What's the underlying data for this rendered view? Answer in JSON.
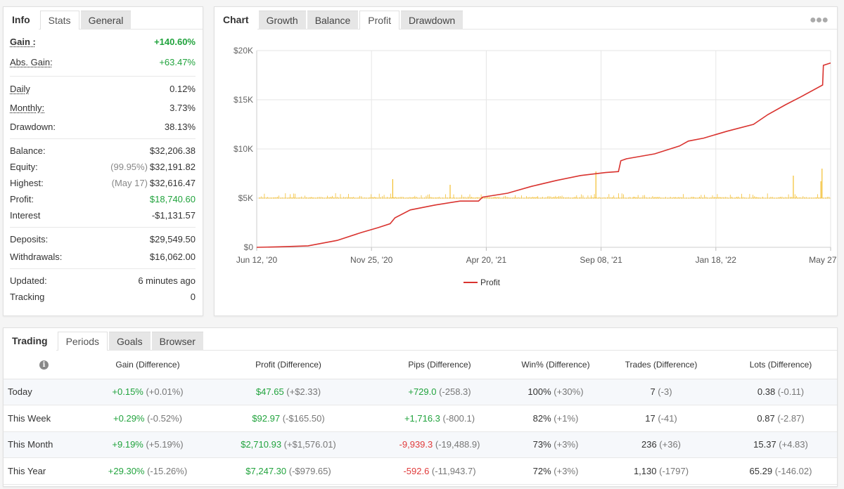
{
  "info_panel": {
    "tabs": [
      {
        "label": "Info",
        "kind": "label"
      },
      {
        "label": "Stats",
        "kind": "active"
      },
      {
        "label": "General",
        "kind": "inactive"
      }
    ],
    "gain": {
      "label": "Gain :",
      "value": "+140.60%"
    },
    "abs_gain": {
      "label": "Abs. Gain:",
      "value": "+63.47%"
    },
    "daily": {
      "label": "Daily",
      "value": "0.12%"
    },
    "monthly": {
      "label": "Monthly:",
      "value": "3.73%"
    },
    "drawdown": {
      "label": "Drawdown:",
      "value": "38.13%"
    },
    "balance": {
      "label": "Balance:",
      "value": "$32,206.38"
    },
    "equity": {
      "label": "Equity:",
      "note": "(99.95%)",
      "value": "$32,191.82"
    },
    "highest": {
      "label": "Highest:",
      "note": "(May 17)",
      "value": "$32,616.47"
    },
    "profit": {
      "label": "Profit:",
      "value": "$18,740.60"
    },
    "interest": {
      "label": "Interest",
      "value": "-$1,131.57"
    },
    "deposits": {
      "label": "Deposits:",
      "value": "$29,549.50"
    },
    "withdrawals": {
      "label": "Withdrawals:",
      "value": "$16,062.00"
    },
    "updated": {
      "label": "Updated:",
      "value": "6 minutes ago"
    },
    "tracking": {
      "label": "Tracking",
      "value": "0"
    }
  },
  "chart_panel": {
    "tabs": [
      {
        "label": "Chart",
        "kind": "label"
      },
      {
        "label": "Growth",
        "kind": "inactive"
      },
      {
        "label": "Balance",
        "kind": "inactive"
      },
      {
        "label": "Profit",
        "kind": "active"
      },
      {
        "label": "Drawdown",
        "kind": "inactive"
      }
    ],
    "menu_icon": "more-dots-icon"
  },
  "chart_data": {
    "type": "line",
    "title": "",
    "xlabel": "",
    "ylabel": "",
    "x_ticks": [
      "Jun 12, '20",
      "Nov 25, '20",
      "Apr 20, '21",
      "Sep 08, '21",
      "Jan 18, '22",
      "May 27, '22"
    ],
    "y_ticks": [
      "$0",
      "$5K",
      "$10K",
      "$15K",
      "$20K"
    ],
    "ylim": [
      0,
      20000
    ],
    "x_range": [
      "2020-06-12",
      "2022-05-27"
    ],
    "grid": true,
    "legend": {
      "position": "bottom-center",
      "entries": [
        "Profit"
      ]
    },
    "series": [
      {
        "name": "Profit",
        "color": "#d9332f",
        "x": [
          "2020-06-12",
          "2020-07-10",
          "2020-08-15",
          "2020-09-20",
          "2020-10-20",
          "2020-11-10",
          "2020-11-25",
          "2020-12-01",
          "2020-12-20",
          "2021-01-20",
          "2021-02-20",
          "2021-03-15",
          "2021-03-20",
          "2021-04-20",
          "2021-05-20",
          "2021-06-20",
          "2021-07-20",
          "2021-08-20",
          "2021-09-05",
          "2021-09-08",
          "2021-09-15",
          "2021-10-20",
          "2021-11-20",
          "2021-12-01",
          "2021-12-20",
          "2022-01-18",
          "2022-02-20",
          "2022-03-10",
          "2022-04-01",
          "2022-04-20",
          "2022-05-17",
          "2022-05-18",
          "2022-05-27"
        ],
        "values": [
          0,
          50,
          150,
          700,
          1500,
          2000,
          2400,
          3000,
          3800,
          4300,
          4700,
          4700,
          5100,
          5500,
          6200,
          6800,
          7300,
          7600,
          7700,
          8800,
          9000,
          9500,
          10300,
          10800,
          11100,
          11800,
          12500,
          13500,
          14500,
          15300,
          16500,
          18500,
          18740
        ]
      }
    ],
    "secondary_series_color": "#f3be2e"
  },
  "periods_panel": {
    "tabs": [
      {
        "label": "Trading",
        "kind": "label"
      },
      {
        "label": "Periods",
        "kind": "active"
      },
      {
        "label": "Goals",
        "kind": "inactive"
      },
      {
        "label": "Browser",
        "kind": "inactive"
      }
    ],
    "columns": [
      "Gain (Difference)",
      "Profit (Difference)",
      "Pips (Difference)",
      "Win% (Difference)",
      "Trades (Difference)",
      "Lots (Difference)"
    ],
    "rows": [
      {
        "name": "Today",
        "gain": "+0.15%",
        "gain_diff": "(+0.01%)",
        "profit": "$47.65",
        "profit_diff": "(+$2.33)",
        "pips": "+729.0",
        "pips_diff": "(-258.3)",
        "pips_positive": true,
        "win": "100%",
        "win_diff": "(+30%)",
        "trades": "7",
        "trades_diff": "(-3)",
        "lots": "0.38",
        "lots_diff": "(-0.11)"
      },
      {
        "name": "This Week",
        "gain": "+0.29%",
        "gain_diff": "(-0.52%)",
        "profit": "$92.97",
        "profit_diff": "(-$165.50)",
        "pips": "+1,716.3",
        "pips_diff": "(-800.1)",
        "pips_positive": true,
        "win": "82%",
        "win_diff": "(+1%)",
        "trades": "17",
        "trades_diff": "(-41)",
        "lots": "0.87",
        "lots_diff": "(-2.87)"
      },
      {
        "name": "This Month",
        "gain": "+9.19%",
        "gain_diff": "(+5.19%)",
        "profit": "$2,710.93",
        "profit_diff": "(+$1,576.01)",
        "pips": "-9,939.3",
        "pips_diff": "(-19,488.9)",
        "pips_positive": false,
        "win": "73%",
        "win_diff": "(+3%)",
        "trades": "236",
        "trades_diff": "(+36)",
        "lots": "15.37",
        "lots_diff": "(+4.83)"
      },
      {
        "name": "This Year",
        "gain": "+29.30%",
        "gain_diff": "(-15.26%)",
        "profit": "$7,247.30",
        "profit_diff": "(-$979.65)",
        "pips": "-592.6",
        "pips_diff": "(-11,943.7)",
        "pips_positive": false,
        "win": "72%",
        "win_diff": "(+3%)",
        "trades": "1,130",
        "trades_diff": "(-1797)",
        "lots": "65.29",
        "lots_diff": "(-146.02)"
      }
    ]
  }
}
